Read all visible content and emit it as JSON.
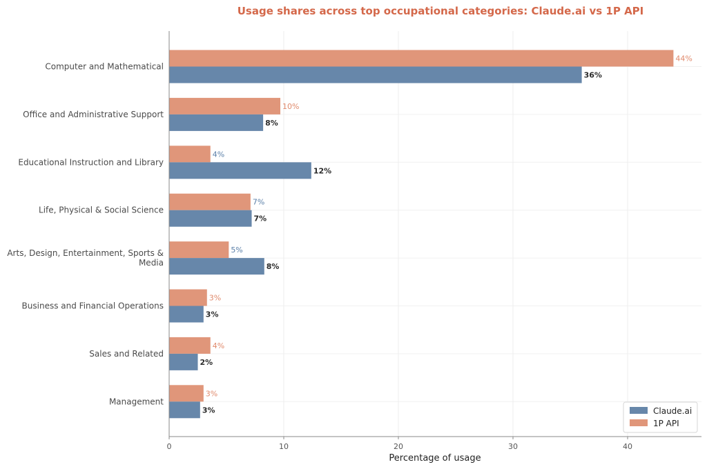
{
  "chart_data": {
    "type": "bar",
    "orientation": "horizontal",
    "title": "Usage shares across top occupational categories: Claude.ai vs 1P API",
    "xlabel": "Percentage of usage",
    "ylabel": "",
    "xlim": [
      0,
      46
    ],
    "xticks": [
      0,
      10,
      20,
      30,
      40
    ],
    "grid": true,
    "legend_position": "bottom-right",
    "categories": [
      "Computer and Mathematical",
      "Office and Administrative Support",
      "Educational Instruction and Library",
      "Life, Physical & Social Science",
      "Arts, Design, Entertainment, Sports & Media",
      "Business and Financial Operations",
      "Sales and Related",
      "Management"
    ],
    "series": [
      {
        "name": "1P API",
        "color": "#e0967a",
        "values": [
          44,
          9.7,
          3.6,
          7.1,
          5.2,
          3.3,
          3.6,
          3.0
        ],
        "labels": [
          "44%",
          "10%",
          "4%",
          "7%",
          "5%",
          "3%",
          "4%",
          "3%"
        ],
        "label_colors": [
          "#e08a6c",
          "#e08a6c",
          "#5a7fa8",
          "#5a7fa8",
          "#5a7fa8",
          "#e08a6c",
          "#e08a6c",
          "#e08a6c"
        ]
      },
      {
        "name": "Claude.ai",
        "color": "#6787aa",
        "values": [
          36,
          8.2,
          12.4,
          7.2,
          8.3,
          3.0,
          2.5,
          2.7
        ],
        "labels": [
          "36%",
          "8%",
          "12%",
          "7%",
          "8%",
          "3%",
          "2%",
          "3%"
        ],
        "label_colors": [
          "#2b2b2b",
          "#2b2b2b",
          "#2b2b2b",
          "#2b2b2b",
          "#2b2b2b",
          "#2b2b2b",
          "#2b2b2b",
          "#2b2b2b"
        ]
      }
    ],
    "legend_order": [
      "Claude.ai",
      "1P API"
    ],
    "title_color": "#d4684a"
  }
}
